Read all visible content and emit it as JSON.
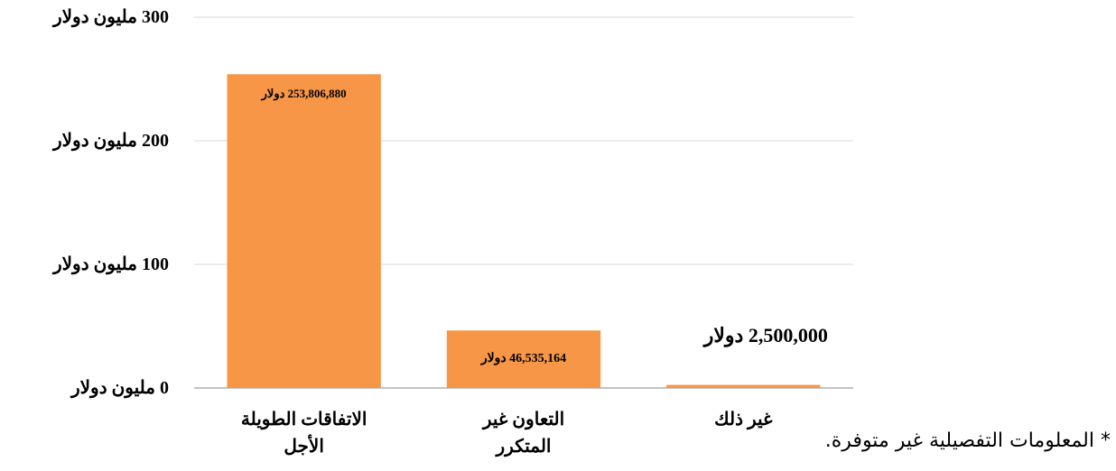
{
  "chart_data": {
    "type": "bar",
    "categories": [
      "الاتفاقات الطويلة الأجل",
      "التعاون غير المتكرر",
      "غير ذلك"
    ],
    "values": [
      253806880,
      46535164,
      2500000
    ],
    "value_labels": [
      "253,806,880 دولار",
      "46,535,164 دولار",
      "2,500,000 دولار"
    ],
    "color": "#f79646",
    "ylim": [
      0,
      300000000
    ],
    "yticks": [
      {
        "value": 0,
        "label": "0 مليون دولار"
      },
      {
        "value": 100000000,
        "label": "100 مليون دولار"
      },
      {
        "value": 200000000,
        "label": "200 مليون دولار"
      },
      {
        "value": 300000000,
        "label": "300 مليون دولار"
      }
    ],
    "grid": true,
    "annotations": [
      "* المعلومات التفصيلية غير متوفرة."
    ]
  }
}
